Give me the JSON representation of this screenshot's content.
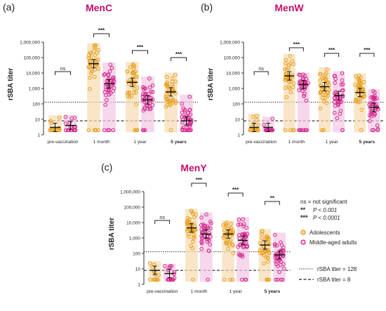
{
  "colors": {
    "adolescents": "#e8a020",
    "adolescents_band": "#f6dcb0",
    "middle_aged": "#d6278e",
    "middle_aged_band": "#f4c6e2",
    "text": "#222222",
    "title": "#c0106a"
  },
  "legend": {
    "sig_ns": "ns = not significant",
    "sig_2_sym": "**",
    "sig_2_txt": "P < 0.001",
    "sig_3_sym": "***",
    "sig_3_txt": "P < 0.0001",
    "adolescents": "Adolescents",
    "middle_aged": "Middle-aged adults",
    "line_128": "rSBA titer = 128",
    "line_8": "rSBA titer = 8"
  },
  "chart_data": [
    {
      "panel": "(a)",
      "title": "MenC",
      "type": "scatter",
      "ylabel": "rSBA titer",
      "yscale": "log",
      "ylim": [
        1,
        1000000
      ],
      "yticks": [
        "1",
        "10",
        "100",
        "1,000",
        "10,000",
        "100,000",
        "1,000,000"
      ],
      "categories": [
        "pre-vaccination",
        "1 month",
        "1 year",
        "5 years"
      ],
      "reference_lines": [
        128,
        8
      ],
      "series": [
        {
          "name": "Adolescents",
          "gmt": [
            3,
            40000,
            2500,
            600
          ]
        },
        {
          "name": "Middle-aged adults",
          "gmt": [
            4,
            2000,
            180,
            8
          ]
        }
      ],
      "significance": [
        "ns",
        "***",
        "***",
        "***"
      ]
    },
    {
      "panel": "(b)",
      "title": "MenW",
      "type": "scatter",
      "ylabel": "rSBA titer",
      "yscale": "log",
      "ylim": [
        1,
        1000000
      ],
      "yticks": [
        "1",
        "10",
        "100",
        "1,000",
        "10,000",
        "100,000",
        "1,000,000"
      ],
      "categories": [
        "pre-vaccination",
        "1 month",
        "1 year",
        "5 years"
      ],
      "reference_lines": [
        128,
        8
      ],
      "series": [
        {
          "name": "Adolescents",
          "gmt": [
            3,
            6500,
            1300,
            550
          ]
        },
        {
          "name": "Middle-aged adults",
          "gmt": [
            3,
            1800,
            350,
            60
          ]
        }
      ],
      "significance": [
        "ns",
        "***",
        "***",
        "***"
      ]
    },
    {
      "panel": "(c)",
      "title": "MenY",
      "type": "scatter",
      "ylabel": "rSBA titer",
      "yscale": "log",
      "ylim": [
        1,
        1000000
      ],
      "yticks": [
        "1",
        "10",
        "100",
        "1,000",
        "10,000",
        "100,000",
        "1,000,000"
      ],
      "categories": [
        "pre-vaccination",
        "1 month",
        "1 year",
        "5 years"
      ],
      "reference_lines": [
        128,
        8
      ],
      "series": [
        {
          "name": "Adolescents",
          "gmt": [
            8,
            4500,
            1800,
            350
          ]
        },
        {
          "name": "Middle-aged adults",
          "gmt": [
            5,
            1800,
            700,
            80
          ]
        }
      ],
      "significance": [
        "ns",
        "***",
        "***",
        "**"
      ]
    }
  ]
}
